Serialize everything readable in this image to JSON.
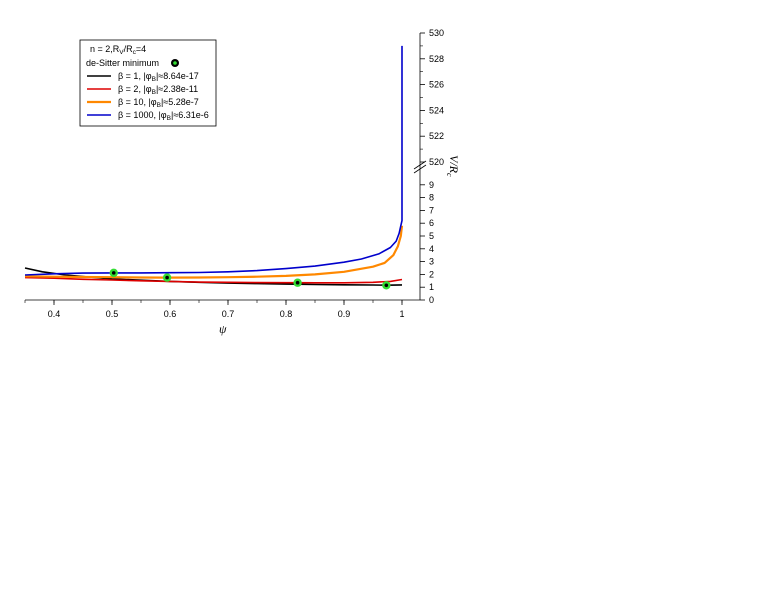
{
  "chart_data": {
    "type": "line",
    "xlabel": "ψ",
    "ylabel": "V/R",
    "ylabel_sub": "c",
    "xlim": [
      0.35,
      1.0
    ],
    "ylim_lower": [
      0,
      10
    ],
    "ylim_upper": [
      520,
      530
    ],
    "x_ticks": [
      "0.4",
      "0.5",
      "0.6",
      "0.7",
      "0.8",
      "0.9",
      "1"
    ],
    "y_ticks_lower": [
      "0",
      "1",
      "2",
      "3",
      "4",
      "5",
      "6",
      "7",
      "8",
      "9"
    ],
    "y_ticks_upper": [
      "520",
      "522",
      "524",
      "526",
      "528",
      "530"
    ],
    "legend": {
      "header": "n = 2,R",
      "header_sub1": "V",
      "header_mid": "/R",
      "header_sub2": "c",
      "header_tail": "=4",
      "minimum_label": "de-Sitter minimum"
    },
    "series": [
      {
        "name": "β = 1, |φ",
        "name_sub": "B",
        "name_tail": "|≈8.64e-17",
        "color": "#000000",
        "x": [
          0.35,
          0.38,
          0.42,
          0.46,
          0.5,
          0.55,
          0.6,
          0.65,
          0.7,
          0.75,
          0.8,
          0.85,
          0.9,
          0.95,
          0.975,
          1.0
        ],
        "y": [
          2.5,
          2.2,
          1.95,
          1.8,
          1.65,
          1.55,
          1.45,
          1.38,
          1.32,
          1.28,
          1.24,
          1.21,
          1.19,
          1.17,
          1.16,
          1.18
        ]
      },
      {
        "name": "β = 2, |φ",
        "name_sub": "B",
        "name_tail": "|≈2.38e-11",
        "color": "#dd0000",
        "x": [
          0.35,
          0.4,
          0.45,
          0.5,
          0.55,
          0.6,
          0.65,
          0.7,
          0.75,
          0.8,
          0.82,
          0.85,
          0.9,
          0.95,
          0.98,
          1.0
        ],
        "y": [
          1.75,
          1.7,
          1.62,
          1.56,
          1.5,
          1.45,
          1.4,
          1.38,
          1.36,
          1.35,
          1.35,
          1.34,
          1.34,
          1.38,
          1.45,
          1.6
        ]
      },
      {
        "name": "β = 10, |φ",
        "name_sub": "B",
        "name_tail": "|≈5.28e-7",
        "color": "#ff8800",
        "x": [
          0.35,
          0.4,
          0.45,
          0.5,
          0.55,
          0.595,
          0.65,
          0.7,
          0.75,
          0.8,
          0.85,
          0.9,
          0.95,
          0.97,
          0.985,
          0.993,
          0.998,
          1.0
        ],
        "y": [
          1.85,
          1.82,
          1.8,
          1.78,
          1.76,
          1.75,
          1.76,
          1.78,
          1.82,
          1.88,
          2.0,
          2.2,
          2.6,
          2.9,
          3.5,
          4.2,
          5.0,
          5.8
        ]
      },
      {
        "name": "β = 1000, |φ",
        "name_sub": "B",
        "name_tail": "|≈6.31e-6",
        "color": "#0000cc",
        "x": [
          0.35,
          0.4,
          0.45,
          0.5,
          0.55,
          0.6,
          0.65,
          0.7,
          0.75,
          0.8,
          0.85,
          0.9,
          0.93,
          0.96,
          0.98,
          0.99,
          0.995,
          0.998,
          1.0,
          1.0
        ],
        "y": [
          1.95,
          2.05,
          2.1,
          2.12,
          2.12,
          2.13,
          2.15,
          2.2,
          2.3,
          2.45,
          2.65,
          2.95,
          3.2,
          3.6,
          4.1,
          4.6,
          5.2,
          5.8,
          6.2,
          529
        ]
      }
    ],
    "minima": [
      {
        "x": 0.973,
        "y": 1.15
      },
      {
        "x": 0.82,
        "y": 1.35
      },
      {
        "x": 0.595,
        "y": 1.75
      },
      {
        "x": 0.503,
        "y": 2.12
      }
    ],
    "minimum_color": "#33dd33"
  }
}
